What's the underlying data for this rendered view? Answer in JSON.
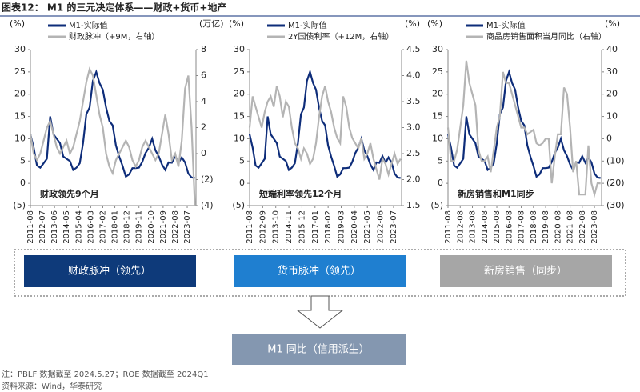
{
  "header": {
    "title": "图表12： M1 的三元决定体系——财政+货币+地产"
  },
  "chart_data": [
    {
      "type": "line",
      "y_unit": "(%)",
      "y2_unit": "(万亿)",
      "annotation": "财政领先9个月",
      "x": [
        "2011-08",
        "2011-11",
        "2012-02",
        "2012-05",
        "2012-08",
        "2012-11",
        "2013-02",
        "2013-05",
        "2013-08",
        "2013-11",
        "2014-02",
        "2014-05",
        "2014-08",
        "2014-11",
        "2015-02",
        "2015-05",
        "2015-08",
        "2015-11",
        "2016-02",
        "2016-05",
        "2016-08",
        "2016-11",
        "2017-02",
        "2017-05",
        "2017-08",
        "2017-11",
        "2018-02",
        "2018-05",
        "2018-08",
        "2018-11",
        "2019-02",
        "2019-05",
        "2019-08",
        "2019-11",
        "2020-02",
        "2020-05",
        "2020-08",
        "2020-11",
        "2021-02",
        "2021-05",
        "2021-08",
        "2021-11",
        "2022-02",
        "2022-05",
        "2022-08",
        "2022-11",
        "2023-02",
        "2023-05",
        "2023-08",
        "2023-11",
        "2024-02"
      ],
      "xlim": [
        "2011-08",
        "2024-03"
      ],
      "xticks": [
        "2011-08",
        "2012-07",
        "2013-06",
        "2014-05",
        "2015-04",
        "2016-03",
        "2017-02",
        "2018-01",
        "2018-12",
        "2019-11",
        "2020-10",
        "2021-09",
        "2022-08",
        "2023-07"
      ],
      "ylim": [
        -5,
        30
      ],
      "yticks": [
        {
          "value": -5,
          "label": "(5)"
        },
        0,
        5,
        10,
        15,
        20,
        25,
        30
      ],
      "y2lim": [
        -4,
        8
      ],
      "y2ticks": [
        {
          "value": -4,
          "label": "(4)"
        },
        {
          "value": -2,
          "label": "(2)"
        },
        0,
        2,
        4,
        6,
        8
      ],
      "series": [
        {
          "name": "M1-实际值",
          "color": "#0e2d7a",
          "values": [
            11,
            8,
            4,
            3.5,
            4.5,
            5.5,
            15,
            11,
            10,
            9,
            6,
            5.5,
            5,
            3,
            3.5,
            4.5,
            9,
            15.5,
            17,
            23,
            25,
            22.5,
            21,
            17,
            14,
            13,
            8.5,
            6,
            3.9,
            1.5,
            2,
            3.4,
            3.4,
            3.5,
            4.8,
            6.8,
            8,
            10,
            7.4,
            6.1,
            4.2,
            3,
            4.7,
            4.6,
            6.1,
            4.6,
            5.8,
            4.7,
            2.2,
            1.3,
            1.2
          ]
        },
        {
          "name": "财政脉冲（+9M，右轴）",
          "color": "#b4b4b4",
          "axis": "y2",
          "values": [
            1.5,
            0,
            -0.5,
            0,
            1,
            2,
            2.5,
            1.5,
            0.5,
            0,
            0.5,
            1,
            0,
            0.5,
            1.5,
            2.5,
            4,
            5.5,
            6.5,
            6,
            4.5,
            3,
            2,
            0,
            -1,
            -1.5,
            -0.5,
            0,
            0.5,
            1,
            0.5,
            -0.5,
            -1,
            -0.5,
            0.5,
            1,
            0.5,
            0,
            -0.5,
            0,
            1.5,
            3,
            1.5,
            -0.5,
            0,
            -1,
            1,
            5,
            6,
            2,
            -4
          ]
        }
      ]
    },
    {
      "type": "line",
      "y_unit": "(%)",
      "y2_unit": "(%)",
      "annotation": "短端利率领先12个月",
      "x": [
        "2011-08",
        "2011-11",
        "2012-02",
        "2012-05",
        "2012-08",
        "2012-11",
        "2013-02",
        "2013-05",
        "2013-08",
        "2013-11",
        "2014-02",
        "2014-05",
        "2014-08",
        "2014-11",
        "2015-02",
        "2015-05",
        "2015-08",
        "2015-11",
        "2016-02",
        "2016-05",
        "2016-08",
        "2016-11",
        "2017-02",
        "2017-05",
        "2017-08",
        "2017-11",
        "2018-02",
        "2018-05",
        "2018-08",
        "2018-11",
        "2019-02",
        "2019-05",
        "2019-08",
        "2019-11",
        "2020-02",
        "2020-05",
        "2020-08",
        "2020-11",
        "2021-02",
        "2021-05",
        "2021-08",
        "2021-11",
        "2022-02",
        "2022-05",
        "2022-08",
        "2022-11",
        "2023-02",
        "2023-05",
        "2023-08",
        "2023-11",
        "2024-02"
      ],
      "xlim": [
        "2011-08",
        "2024-03"
      ],
      "xticks": [
        "2011-08",
        "2012-09",
        "2013-10",
        "2014-11",
        "2015-12",
        "2017-01",
        "2018-02",
        "2019-03",
        "2020-04",
        "2021-05",
        "2022-06",
        "2023-07"
      ],
      "ylim": [
        -5,
        30
      ],
      "yticks": [
        {
          "value": -5,
          "label": "(5)"
        },
        0,
        5,
        10,
        15,
        20,
        25,
        30
      ],
      "y2lim": [
        1.5,
        4.5
      ],
      "y2ticks": [
        1.5,
        {
          "value": 2,
          "label": "2.0"
        },
        2.5,
        {
          "value": 3,
          "label": "3.0"
        },
        3.5,
        {
          "value": 4,
          "label": "4.0"
        },
        4.5
      ],
      "series": [
        {
          "name": "M1-实际值",
          "color": "#0e2d7a",
          "values": [
            11,
            8,
            4,
            3.5,
            4.5,
            5.5,
            15,
            11,
            10,
            9,
            6,
            5.5,
            5,
            3,
            3.5,
            4.5,
            9,
            15.5,
            17,
            23,
            25,
            22.5,
            21,
            17,
            14,
            13,
            8.5,
            6,
            3.9,
            1.5,
            2,
            3.4,
            3.4,
            3.5,
            4.8,
            6.8,
            8,
            10,
            7.4,
            6.1,
            4.2,
            3,
            4.7,
            4.6,
            6.1,
            4.6,
            5.8,
            4.7,
            2.2,
            1.3,
            1.2
          ]
        },
        {
          "name": "2Y国债利率（+12M，右轴）",
          "color": "#b4b4b4",
          "axis": "y2",
          "values": [
            3.0,
            3.6,
            3.4,
            3.2,
            3.0,
            3.3,
            3.5,
            3.6,
            3.4,
            3.8,
            3.6,
            3.2,
            3.5,
            3.4,
            3.0,
            2.7,
            2.6,
            2.4,
            2.6,
            2.5,
            2.3,
            2.4,
            2.7,
            3.2,
            3.6,
            3.8,
            3.5,
            3.3,
            3.0,
            2.8,
            2.7,
            3.6,
            3.4,
            3.0,
            2.8,
            2.7,
            2.6,
            2.8,
            2.4,
            2.5,
            2.7,
            2.4,
            2.2,
            2.0,
            2.4,
            2.3,
            2.1,
            2.3,
            2.5,
            2.3,
            2.4
          ]
        }
      ]
    },
    {
      "type": "line",
      "y_unit": "(%)",
      "y2_unit": "(%)",
      "annotation": "新房销售和M1同步",
      "x": [
        "2011-08",
        "2011-11",
        "2012-02",
        "2012-05",
        "2012-08",
        "2012-11",
        "2013-02",
        "2013-05",
        "2013-08",
        "2013-11",
        "2014-02",
        "2014-05",
        "2014-08",
        "2014-11",
        "2015-02",
        "2015-05",
        "2015-08",
        "2015-11",
        "2016-02",
        "2016-05",
        "2016-08",
        "2016-11",
        "2017-02",
        "2017-05",
        "2017-08",
        "2017-11",
        "2018-02",
        "2018-05",
        "2018-08",
        "2018-11",
        "2019-02",
        "2019-05",
        "2019-08",
        "2019-11",
        "2020-02",
        "2020-05",
        "2020-08",
        "2020-11",
        "2021-02",
        "2021-05",
        "2021-08",
        "2021-11",
        "2022-02",
        "2022-05",
        "2022-08",
        "2022-11",
        "2023-02",
        "2023-05",
        "2023-08",
        "2023-11",
        "2024-02"
      ],
      "xlim": [
        "2011-08",
        "2024-03"
      ],
      "xticks": [
        "2011-08",
        "2012-08",
        "2013-08",
        "2014-08",
        "2015-08",
        "2016-08",
        "2017-08",
        "2018-08",
        "2019-08",
        "2020-08",
        "2021-08",
        "2022-08",
        "2023-08"
      ],
      "ylim": [
        -5,
        30
      ],
      "yticks": [
        {
          "value": -5,
          "label": "(5)"
        },
        0,
        5,
        10,
        15,
        20,
        25,
        30
      ],
      "y2lim": [
        -30,
        40
      ],
      "y2ticks": [
        {
          "value": -30,
          "label": "(30)"
        },
        {
          "value": -20,
          "label": "(20)"
        },
        {
          "value": -10,
          "label": "(10)"
        },
        0,
        10,
        20,
        30,
        40
      ],
      "series": [
        {
          "name": "M1-实际值",
          "color": "#0e2d7a",
          "values": [
            11,
            8,
            4,
            3.5,
            4.5,
            5.5,
            15,
            11,
            10,
            9,
            6,
            5.5,
            5,
            3,
            3.5,
            4.5,
            9,
            15.5,
            17,
            23,
            25,
            22.5,
            21,
            17,
            14,
            13,
            8.5,
            6,
            3.9,
            1.5,
            2,
            3.4,
            3.4,
            3.5,
            4.8,
            6.8,
            8,
            10,
            7.4,
            6.1,
            4.2,
            3,
            4.7,
            4.6,
            6.1,
            4.6,
            5.8,
            4.7,
            2.2,
            1.3,
            1.2
          ]
        },
        {
          "name": "商品房销售面积当月同比（右轴）",
          "color": "#b4b4b4",
          "axis": "y2",
          "values": [
            5,
            -10,
            -10,
            -5,
            5,
            15,
            35,
            25,
            20,
            15,
            -5,
            -10,
            -10,
            -8,
            -15,
            -5,
            5,
            10,
            30,
            25,
            25,
            20,
            15,
            10,
            5,
            5,
            2,
            3,
            4,
            -2,
            -3,
            -2,
            0,
            0,
            -20,
            -8,
            2,
            2,
            23,
            20,
            5,
            -15,
            -10,
            -25,
            -25,
            -25,
            -3,
            -20,
            -25,
            -20,
            -20
          ]
        }
      ]
    }
  ],
  "diagram": {
    "boxes": [
      "财政脉冲（领先）",
      "货币脉冲（领先）",
      "新房销售（同步）"
    ],
    "result": "M1 同比（信用派生）"
  },
  "notes": [
    "注：PBLF 数据截至 2024.5.27；ROE 数据截至 2024Q1",
    "资料来源：Wind，华泰研究"
  ]
}
